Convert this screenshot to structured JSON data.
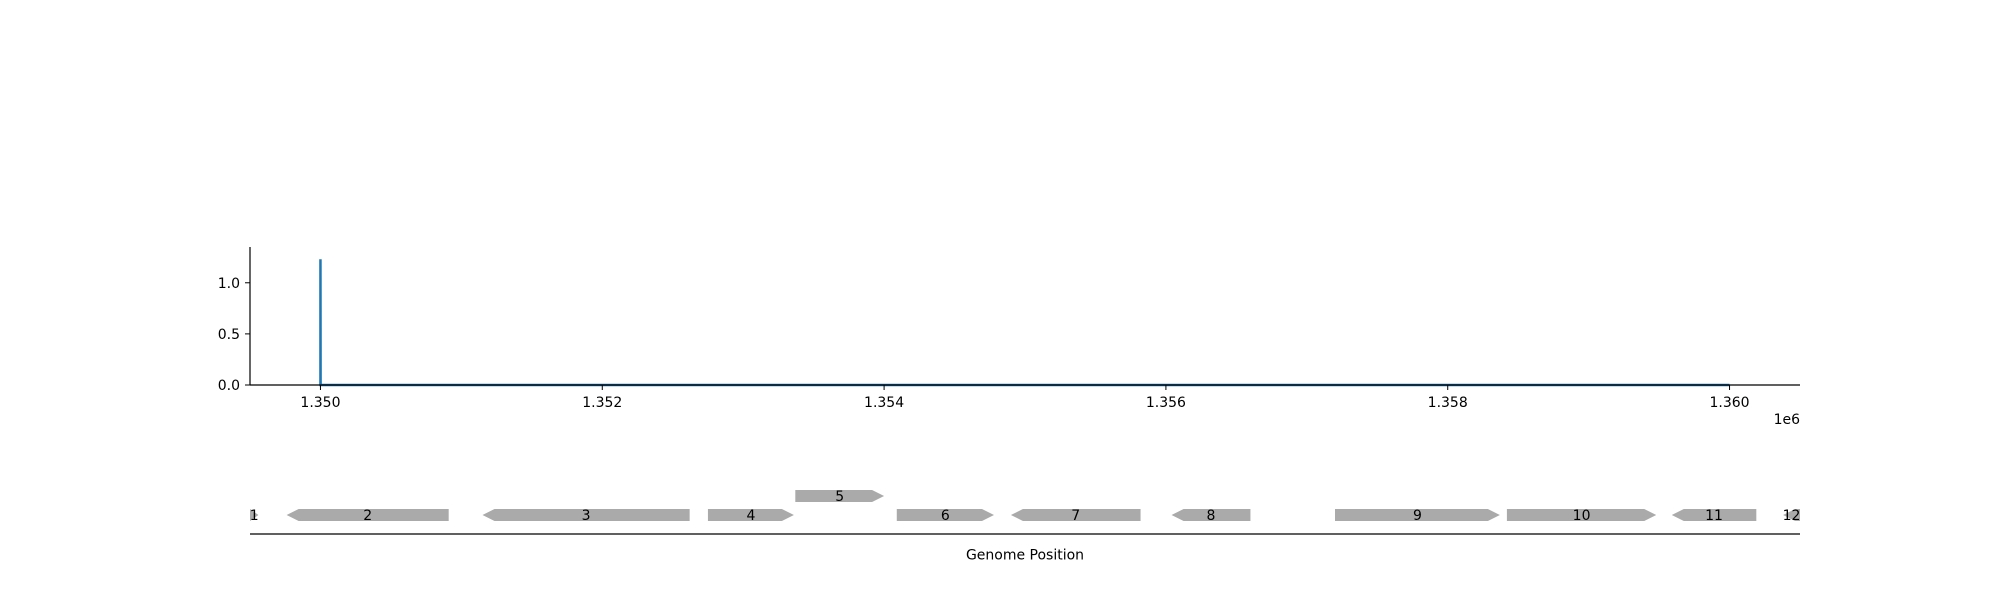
{
  "chart_data": [
    {
      "type": "line",
      "title": "",
      "xlabel": "",
      "ylabel": "",
      "x_offset_text": "1e6",
      "xlim": [
        1349500,
        1360500
      ],
      "ylim": [
        0,
        1.35
      ],
      "x_ticks": [
        1350000,
        1352000,
        1354000,
        1356000,
        1358000,
        1360000
      ],
      "x_tick_labels": [
        "1.350",
        "1.352",
        "1.354",
        "1.356",
        "1.358",
        "1.360"
      ],
      "y_ticks": [
        0.0,
        0.5,
        1.0
      ],
      "y_tick_labels": [
        "0.0",
        "0.5",
        "1.0"
      ],
      "grid": false,
      "series": [
        {
          "color": "#1f77b4",
          "x": [
            1350000,
            1350000,
            1350001,
            1360000
          ],
          "y": [
            0,
            1.23,
            0,
            0
          ]
        }
      ]
    },
    {
      "type": "gene-map",
      "xlabel": "Genome Position",
      "xlim": [
        1349500,
        1360500
      ],
      "gene_color": "#aaaaaa",
      "genes": [
        {
          "label": "1",
          "start": 1349500,
          "end": 1349560,
          "strand": "+",
          "row": 0
        },
        {
          "label": "2",
          "start": 1349760,
          "end": 1350910,
          "strand": "-",
          "row": 0
        },
        {
          "label": "3",
          "start": 1351150,
          "end": 1352620,
          "strand": "-",
          "row": 0
        },
        {
          "label": "4",
          "start": 1352750,
          "end": 1353360,
          "strand": "+",
          "row": 0
        },
        {
          "label": "5",
          "start": 1353370,
          "end": 1354000,
          "strand": "+",
          "row": 1
        },
        {
          "label": "6",
          "start": 1354090,
          "end": 1354780,
          "strand": "+",
          "row": 0
        },
        {
          "label": "7",
          "start": 1354900,
          "end": 1355820,
          "strand": "-",
          "row": 0
        },
        {
          "label": "8",
          "start": 1356040,
          "end": 1356600,
          "strand": "-",
          "row": 0
        },
        {
          "label": "9",
          "start": 1357200,
          "end": 1358370,
          "strand": "+",
          "row": 0
        },
        {
          "label": "10",
          "start": 1358420,
          "end": 1359480,
          "strand": "+",
          "row": 0
        },
        {
          "label": "11",
          "start": 1359590,
          "end": 1360190,
          "strand": "-",
          "row": 0
        },
        {
          "label": "12",
          "start": 1360380,
          "end": 1360500,
          "strand": "-",
          "row": 0
        }
      ]
    }
  ]
}
